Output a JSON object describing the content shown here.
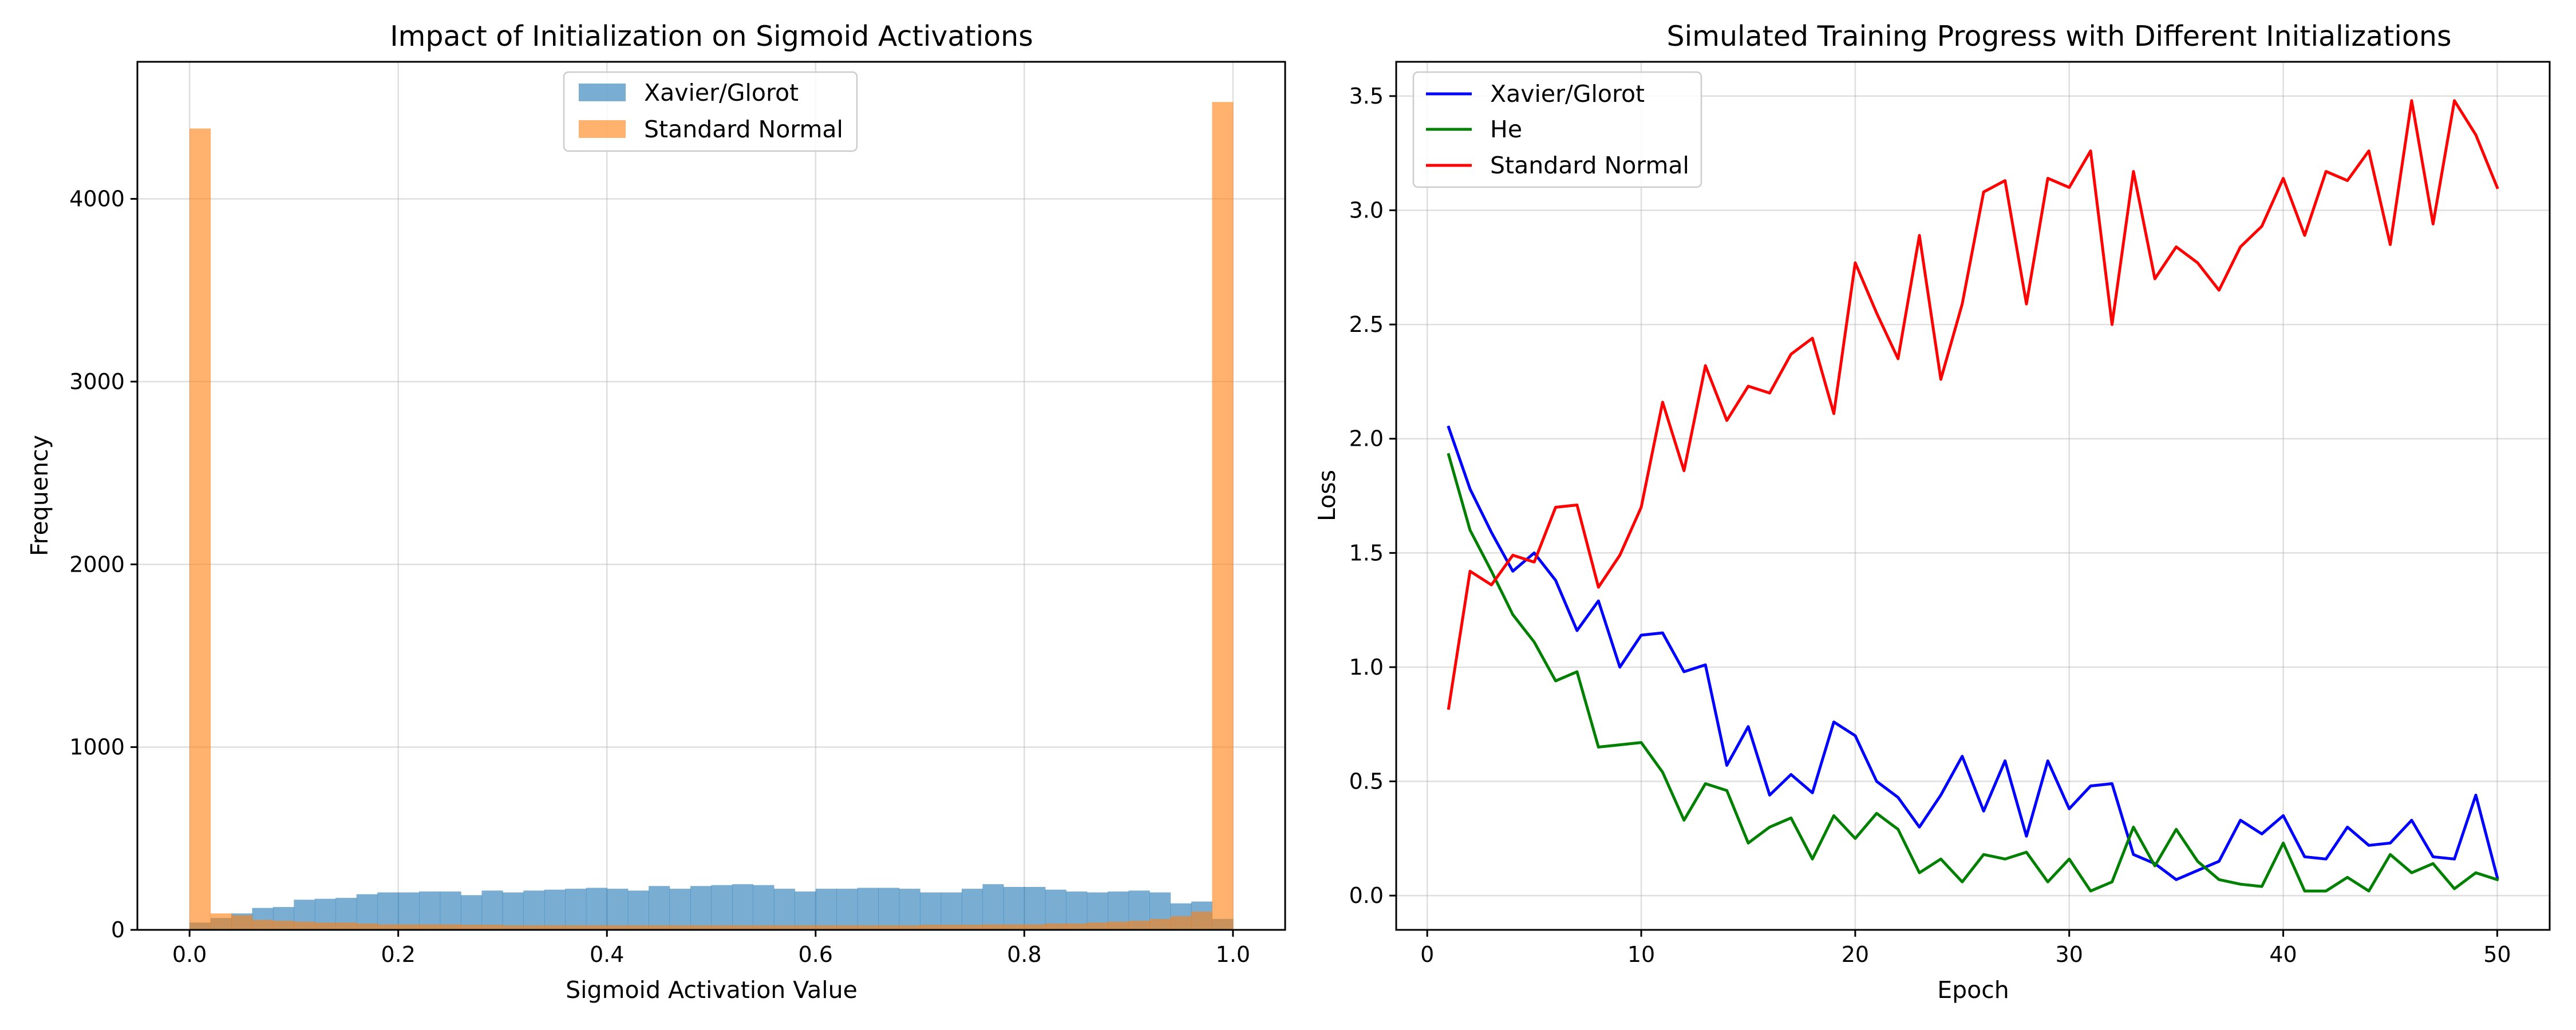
{
  "chart_data": [
    {
      "type": "bar",
      "title": "Impact of Initialization on Sigmoid Activations",
      "xlabel": "Sigmoid Activation Value",
      "ylabel": "Frequency",
      "xlim": [
        -0.05,
        1.05
      ],
      "ylim": [
        0,
        4750
      ],
      "xticks": [
        0.0,
        0.2,
        0.4,
        0.6,
        0.8,
        1.0
      ],
      "xtick_labels": [
        "0.0",
        "0.2",
        "0.4",
        "0.6",
        "0.8",
        "1.0"
      ],
      "yticks": [
        0,
        1000,
        2000,
        3000,
        4000
      ],
      "ytick_labels": [
        "0",
        "1000",
        "2000",
        "3000",
        "4000"
      ],
      "grid": true,
      "legend_position": "upper-center",
      "series": [
        {
          "name": "Xavier/Glorot",
          "color": "#1f77b4",
          "alpha": 0.6,
          "bin_start": 0.0,
          "bin_width": 0.02,
          "counts": [
            40,
            65,
            90,
            120,
            125,
            165,
            170,
            175,
            195,
            205,
            205,
            210,
            210,
            190,
            215,
            205,
            215,
            220,
            225,
            230,
            225,
            215,
            240,
            225,
            240,
            245,
            250,
            245,
            225,
            210,
            225,
            225,
            230,
            230,
            225,
            205,
            205,
            225,
            250,
            235,
            235,
            220,
            210,
            205,
            210,
            215,
            205,
            145,
            155,
            60
          ]
        },
        {
          "name": "Standard Normal",
          "color": "#ff7f0e",
          "alpha": 0.6,
          "bin_start": 0.0,
          "bin_width": 0.02,
          "counts": [
            4385,
            90,
            80,
            55,
            50,
            45,
            40,
            40,
            35,
            30,
            30,
            30,
            30,
            28,
            28,
            25,
            25,
            25,
            25,
            25,
            25,
            25,
            25,
            25,
            25,
            25,
            25,
            25,
            25,
            25,
            25,
            25,
            25,
            25,
            25,
            28,
            28,
            28,
            30,
            30,
            30,
            35,
            35,
            40,
            45,
            50,
            60,
            75,
            100,
            4530
          ]
        }
      ]
    },
    {
      "type": "line",
      "title": "Simulated Training Progress with Different Initializations",
      "xlabel": "Epoch",
      "ylabel": "Loss",
      "xlim": [
        -1.45,
        52.45
      ],
      "ylim": [
        -0.15,
        3.65
      ],
      "xticks": [
        0,
        10,
        20,
        30,
        40,
        50
      ],
      "xtick_labels": [
        "0",
        "10",
        "20",
        "30",
        "40",
        "50"
      ],
      "yticks": [
        0.0,
        0.5,
        1.0,
        1.5,
        2.0,
        2.5,
        3.0,
        3.5
      ],
      "ytick_labels": [
        "0.0",
        "0.5",
        "1.0",
        "1.5",
        "2.0",
        "2.5",
        "3.0",
        "3.5"
      ],
      "grid": true,
      "legend_position": "upper-left",
      "x": [
        1,
        2,
        3,
        4,
        5,
        6,
        7,
        8,
        9,
        10,
        11,
        12,
        13,
        14,
        15,
        16,
        17,
        18,
        19,
        20,
        21,
        22,
        23,
        24,
        25,
        26,
        27,
        28,
        29,
        30,
        31,
        32,
        33,
        34,
        35,
        36,
        37,
        38,
        39,
        40,
        41,
        42,
        43,
        44,
        45,
        46,
        47,
        48,
        49,
        50
      ],
      "series": [
        {
          "name": "Xavier/Glorot",
          "color": "#0000ff",
          "values": [
            2.05,
            1.78,
            1.59,
            1.42,
            1.5,
            1.38,
            1.16,
            1.29,
            1.0,
            1.14,
            1.15,
            0.98,
            1.01,
            0.57,
            0.74,
            0.44,
            0.53,
            0.45,
            0.76,
            0.7,
            0.5,
            0.43,
            0.3,
            0.44,
            0.61,
            0.37,
            0.59,
            0.26,
            0.59,
            0.38,
            0.48,
            0.49,
            0.18,
            0.14,
            0.07,
            0.11,
            0.15,
            0.33,
            0.27,
            0.35,
            0.17,
            0.16,
            0.3,
            0.22,
            0.23,
            0.33,
            0.17,
            0.16,
            0.44,
            0.08
          ]
        },
        {
          "name": "He",
          "color": "#008000",
          "values": [
            1.93,
            1.6,
            1.42,
            1.23,
            1.11,
            0.94,
            0.98,
            0.65,
            0.66,
            0.67,
            0.54,
            0.33,
            0.49,
            0.46,
            0.23,
            0.3,
            0.34,
            0.16,
            0.35,
            0.25,
            0.36,
            0.29,
            0.1,
            0.16,
            0.06,
            0.18,
            0.16,
            0.19,
            0.06,
            0.16,
            0.02,
            0.06,
            0.3,
            0.13,
            0.29,
            0.15,
            0.07,
            0.05,
            0.04,
            0.23,
            0.02,
            0.02,
            0.08,
            0.02,
            0.18,
            0.1,
            0.14,
            0.03,
            0.1,
            0.07
          ]
        },
        {
          "name": "Standard Normal",
          "color": "#ff0000",
          "values": [
            0.82,
            1.42,
            1.36,
            1.49,
            1.46,
            1.7,
            1.71,
            1.35,
            1.49,
            1.7,
            2.16,
            1.86,
            2.32,
            2.08,
            2.23,
            2.2,
            2.37,
            2.44,
            2.11,
            2.77,
            2.55,
            2.35,
            2.89,
            2.26,
            2.59,
            3.08,
            3.13,
            2.59,
            3.14,
            3.1,
            3.26,
            2.5,
            3.17,
            2.7,
            2.84,
            2.77,
            2.65,
            2.84,
            2.93,
            3.14,
            2.89,
            3.17,
            3.13,
            3.26,
            2.85,
            3.48,
            2.94,
            3.48,
            3.33,
            3.1
          ]
        }
      ]
    }
  ]
}
